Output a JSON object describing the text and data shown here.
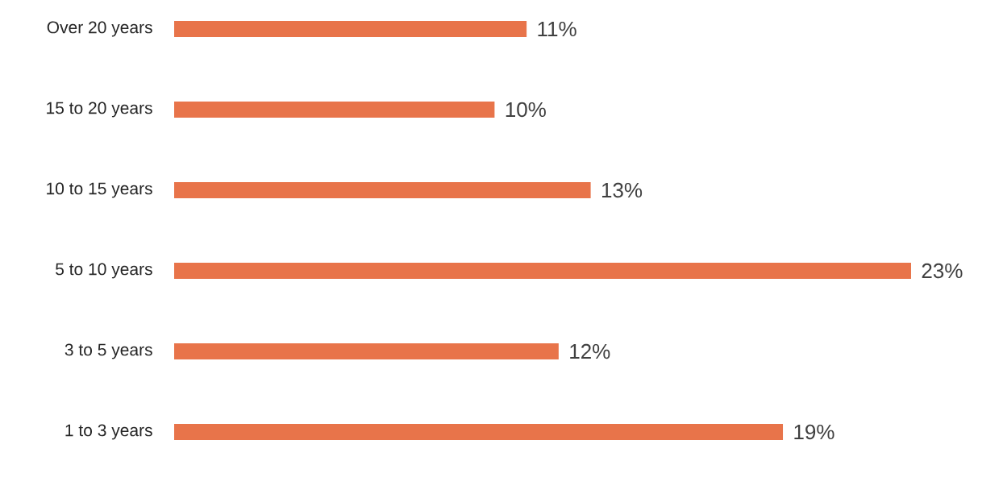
{
  "chart_data": {
    "type": "bar",
    "orientation": "horizontal",
    "categories": [
      "Over 20 years",
      "15 to 20 years",
      "10 to 15 years",
      "5 to 10 years",
      "3 to 5 years",
      "1 to 3 years"
    ],
    "values": [
      11,
      10,
      13,
      23,
      12,
      19
    ],
    "value_labels": [
      "11%",
      "10%",
      "13%",
      "23%",
      "12%",
      "19%"
    ],
    "color": "#e8744a"
  }
}
